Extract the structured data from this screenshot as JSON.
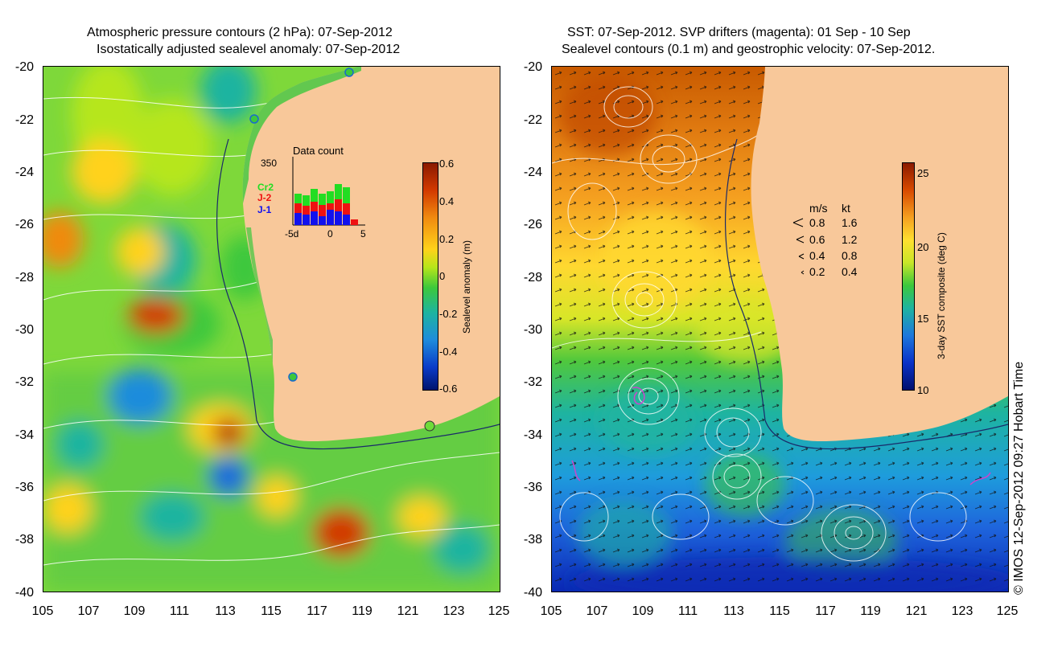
{
  "left_panel": {
    "title_line1": "Atmospheric pressure contours (2 hPa): 07-Sep-2012",
    "title_line2": "Isostatically adjusted sealevel anomaly: 07-Sep-2012",
    "y_ticks": [
      "-20",
      "-22",
      "-24",
      "-26",
      "-28",
      "-30",
      "-32",
      "-34",
      "-36",
      "-38",
      "-40"
    ],
    "x_ticks": [
      "105",
      "107",
      "109",
      "111",
      "113",
      "115",
      "117",
      "119",
      "121",
      "123",
      "125"
    ],
    "colorbar": {
      "label": "Sealevel anomaly (m)",
      "ticks": [
        "0.6",
        "0.4",
        "0.2",
        "0",
        "-0.2",
        "-0.4",
        "-0.6"
      ],
      "colors": [
        "#8b1a00",
        "#d23a00",
        "#f08a10",
        "#ffd21a",
        "#b6e61a",
        "#3cc83c",
        "#1eb4a0",
        "#1e8cdc",
        "#0a3cc8",
        "#00146e"
      ]
    },
    "inset": {
      "title": "Data count",
      "y_max": "350",
      "legend": [
        {
          "label": "Cr2",
          "color": "#22dd22"
        },
        {
          "label": "J-2",
          "color": "#ee1111"
        },
        {
          "label": "J-1",
          "color": "#1111ee"
        }
      ],
      "x_ticks": [
        "-5d",
        "0",
        "5"
      ]
    }
  },
  "right_panel": {
    "title_line1": "SST: 07-Sep-2012. SVP drifters (magenta): 01 Sep - 10 Sep",
    "title_line2": "Sealevel contours (0.1 m) and geostrophic velocity: 07-Sep-2012.",
    "y_ticks": [
      "-20",
      "-22",
      "-24",
      "-26",
      "-28",
      "-30",
      "-32",
      "-34",
      "-36",
      "-38",
      "-40"
    ],
    "x_ticks": [
      "105",
      "107",
      "109",
      "111",
      "113",
      "115",
      "117",
      "119",
      "121",
      "123",
      "125"
    ],
    "colorbar": {
      "label": "3-day SST composite (deg C)",
      "ticks": [
        "25",
        "20",
        "15",
        "10"
      ],
      "colors": [
        "#8b1a00",
        "#d84a00",
        "#f5a020",
        "#ffe030",
        "#c8e628",
        "#3cc83c",
        "#1eb4a0",
        "#1e78dc",
        "#0a32c8",
        "#00106e"
      ]
    },
    "velocity_legend": {
      "header_ms": "m/s",
      "header_kt": "kt",
      "rows": [
        {
          "ms": "0.8",
          "kt": "1.6"
        },
        {
          "ms": "0.6",
          "kt": "1.2"
        },
        {
          "ms": "0.4",
          "kt": "0.8"
        },
        {
          "ms": "0.2",
          "kt": "0.4"
        }
      ]
    }
  },
  "credit": "© IMOS 12-Sep-2012 09:27 Hobart Time",
  "colors": {
    "land": "#f8c89a",
    "axis": "#000000",
    "contour": "#ffffff",
    "drifter": "#cc44cc"
  }
}
